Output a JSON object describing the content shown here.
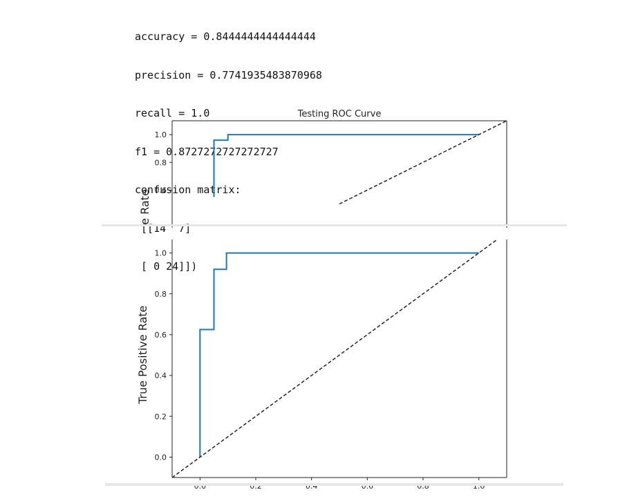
{
  "output": {
    "lines": [
      "accuracy = 0.8444444444444444",
      "precision = 0.7741935483870968",
      "recall = 1.0",
      "f1 = 0.8727272727272727",
      "confusion matrix:",
      " [[14  7]",
      " [ 0 24]])"
    ]
  },
  "chart_data": [
    {
      "type": "line",
      "title": "Testing ROC Curve",
      "ylabel": "e Rate",
      "xlim": [
        -0.1,
        1.1
      ],
      "ylim": [
        -0.1,
        1.1
      ],
      "yticks": [
        0.6,
        0.8,
        1.0
      ],
      "series": [
        {
          "x": [
            0.05,
            0.05,
            0.05,
            0.1,
            0.1,
            1.0
          ],
          "y": [
            0.55,
            0.96,
            0.96,
            0.96,
            1.0,
            1.0
          ],
          "color": "#1f77b4"
        },
        {
          "x": [
            0.5,
            1.1
          ],
          "y": [
            0.5,
            1.1
          ],
          "style": "dashed",
          "color": "#222222"
        }
      ]
    },
    {
      "type": "line",
      "xlabel": "",
      "ylabel": "True Positive Rate",
      "xlim": [
        -0.1,
        1.1
      ],
      "ylim": [
        -0.1,
        1.1
      ],
      "xticks": [
        0.0,
        0.2,
        0.4,
        0.6,
        0.8,
        1.0
      ],
      "yticks": [
        0.0,
        0.2,
        0.4,
        0.6,
        0.8,
        1.0
      ],
      "series": [
        {
          "x": [
            0.0,
            0.0,
            0.0,
            0.05,
            0.05,
            0.095,
            0.095,
            1.0
          ],
          "y": [
            0.0,
            0.625,
            0.625,
            0.625,
            0.92,
            0.92,
            1.0,
            1.0
          ],
          "color": "#1f77b4"
        },
        {
          "x": [
            -0.1,
            1.1
          ],
          "y": [
            -0.1,
            1.1
          ],
          "style": "dashed",
          "color": "#222222"
        }
      ]
    }
  ]
}
